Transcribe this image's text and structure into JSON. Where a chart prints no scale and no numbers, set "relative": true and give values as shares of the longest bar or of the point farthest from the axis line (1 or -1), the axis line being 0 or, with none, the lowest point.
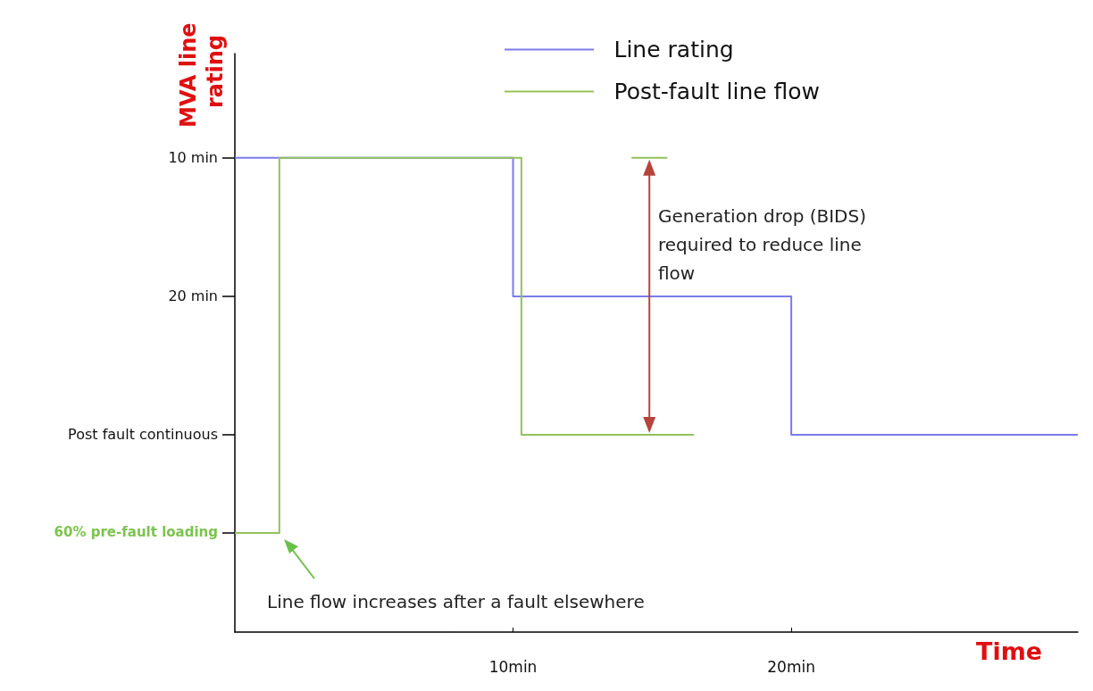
{
  "chart_data": {
    "type": "step",
    "relative": true,
    "ylabel": "MVA line rating",
    "xlabel": "Time",
    "xlim": [
      0,
      30.3
    ],
    "xticks": [
      {
        "value": 10,
        "label": "10min"
      },
      {
        "value": 20,
        "label": "20min"
      }
    ],
    "legend": "top",
    "grid": false,
    "marker": "none",
    "line_style": "solid",
    "series": [
      {
        "name": "Line rating",
        "color": "#7b7bec",
        "x": [
          0,
          10,
          20,
          30.3
        ],
        "values": [
          1,
          0.708,
          0.416,
          0.416
        ]
      },
      {
        "name": "Post-fault line flow",
        "color": "#93c15b",
        "x": [
          0,
          1.6,
          10.3,
          16.5
        ],
        "values": [
          0.209,
          1,
          0.416,
          0.416
        ]
      }
    ],
    "annotations": [
      "10 min",
      "20 min",
      "Post fault continuous",
      "60% pre-fault loading",
      "Generation drop (BIDS) required to reduce line flow",
      "Line flow increases after a fault elsewhere"
    ]
  }
}
